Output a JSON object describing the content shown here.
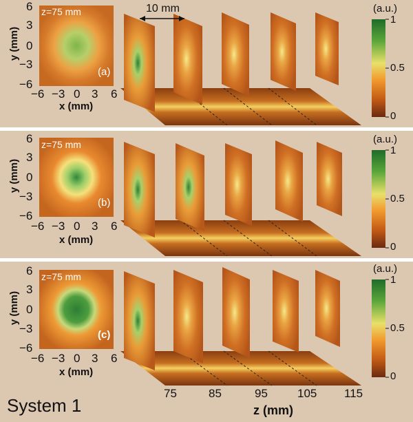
{
  "panels": [
    {
      "inset_title": "z=75 mm",
      "tag": "(a)"
    },
    {
      "inset_title": "z=75 mm",
      "tag": "(b)"
    },
    {
      "inset_title": "z=75 mm",
      "tag": "(c)"
    }
  ],
  "inset_axes": {
    "x_ticks": [
      "−6",
      "−3",
      "0",
      "3",
      "6"
    ],
    "y_ticks": [
      "6",
      "3",
      "0",
      "−3",
      "−6"
    ],
    "xlabel": "x (mm)",
    "ylabel": "y (mm)"
  },
  "colorbar": {
    "unit": "(a.u.)",
    "ticks": [
      "1",
      "0.5",
      "0"
    ],
    "colors": [
      "#1f6b2a",
      "#5aa63a",
      "#e8e06a",
      "#f29a2e",
      "#c25a14",
      "#6b2a10"
    ]
  },
  "scale_bar": {
    "label": "10 mm"
  },
  "z_axis": {
    "ticks": [
      "75",
      "85",
      "95",
      "105",
      "115"
    ],
    "label": "z (mm)"
  },
  "system_label": "System 1"
}
